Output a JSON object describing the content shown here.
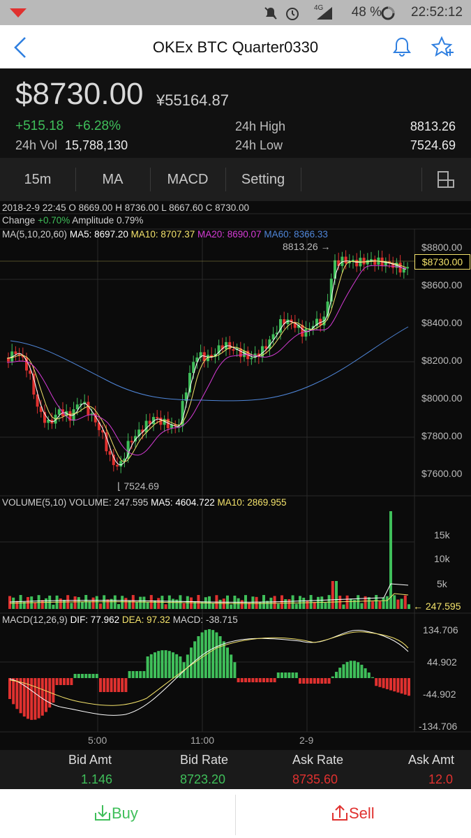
{
  "status": {
    "battery": "48 %",
    "time": "22:52:12",
    "network": "4G"
  },
  "nav": {
    "title": "OKEx BTC  Quarter0330"
  },
  "price": {
    "last": "$8730.00",
    "cny": "¥55164.87",
    "change": "+515.18",
    "change_pct": "+6.28%",
    "high_label": "24h High",
    "high": "8813.26",
    "low_label": "24h Low",
    "low": "7524.69",
    "vol_label": "24h Vol",
    "vol": "15,788,130"
  },
  "tabs": [
    "15m",
    "MA",
    "MACD",
    "Setting"
  ],
  "ohlc": {
    "date": "2018-2-9 22:45",
    "o_label": "O",
    "o": "8669.00",
    "h_label": "H",
    "h": "8736.00",
    "l_label": "L",
    "l": "8667.60",
    "c_label": "C",
    "c": "8730.00",
    "change_label": "Change",
    "change": "+0.70%",
    "amp_label": "Amplitude",
    "amp": "0.79%"
  },
  "ma": {
    "label": "MA(5,10,20,60)",
    "ma5": "MA5: 8697.20",
    "ma10": "MA10: 8707.37",
    "ma20": "MA20: 8690.07",
    "ma60": "MA60: 8366.33"
  },
  "price_axis": [
    "$8800.00",
    "$8600.00",
    "$8400.00",
    "$8200.00",
    "$8000.00",
    "$7800.00",
    "$7600.00"
  ],
  "price_tag": "$8730.00",
  "high_marker": "8813.26",
  "low_marker": "7524.69",
  "volume": {
    "label": "VOLUME(5,10)",
    "vol": "VOLUME: 247.595",
    "ma5": "MA5: 4604.722",
    "ma10": "MA10: 2869.955",
    "axis": [
      "15k",
      "10k",
      "5k"
    ],
    "tag": "247.595"
  },
  "macd": {
    "label": "MACD(12,26,9)",
    "dif": "DIF: 77.962",
    "dea": "DEA: 97.32",
    "macd": "MACD: -38.715",
    "axis": [
      "134.706",
      "44.902",
      "-44.902",
      "-134.706"
    ]
  },
  "time_axis": [
    "5:00",
    "11:00",
    "2-9"
  ],
  "book": {
    "headers": [
      "Bid Amt",
      "Bid Rate",
      "Ask Rate",
      "Ask Amt"
    ],
    "values": [
      "1.146",
      "8723.20",
      "8735.60",
      "12.0"
    ]
  },
  "actions": {
    "buy": "Buy",
    "sell": "Sell"
  },
  "colors": {
    "up": "#3fbf5a",
    "down": "#e0312f",
    "ma5": "#ffffff",
    "ma10": "#f4e36b",
    "ma20": "#d63bd6",
    "ma60": "#4f86d9",
    "accent": "#2f7fe0"
  }
}
